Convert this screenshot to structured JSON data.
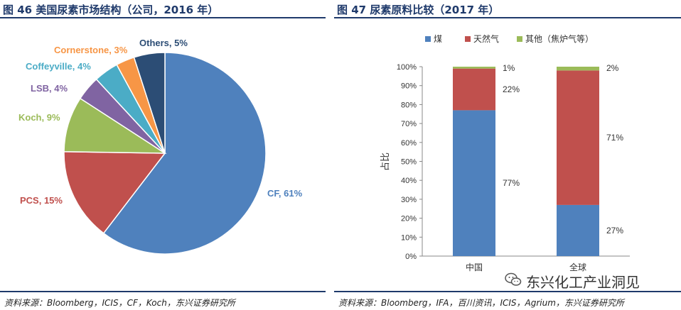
{
  "left": {
    "title": "图 46 美国尿素市场结构（公司，2016 年）",
    "source": "资料来源：Bloomberg，ICIS，CF，Koch，东兴证券研究所"
  },
  "right": {
    "title": "图 47 尿素原料比较（2017 年）",
    "source": "资料来源：Bloomberg，IFA，百川资讯，ICIS，Agrium，东兴证券研究所"
  },
  "watermark": "东兴化工产业洞见",
  "chart_data": [
    {
      "type": "pie",
      "title": "图 46 美国尿素市场结构（公司，2016 年）",
      "slices": [
        {
          "name": "CF",
          "value": 61,
          "label": "CF, 61%",
          "color": "#4f81bd"
        },
        {
          "name": "PCS",
          "value": 15,
          "label": "PCS, 15%",
          "color": "#c0504d"
        },
        {
          "name": "Koch",
          "value": 9,
          "label": "Koch, 9%",
          "color": "#9bbb59"
        },
        {
          "name": "LSB",
          "value": 4,
          "label": "LSB, 4%",
          "color": "#8064a2"
        },
        {
          "name": "Coffeyville",
          "value": 4,
          "label": "Coffeyville, 4%",
          "color": "#4bacc6"
        },
        {
          "name": "Cornerstone",
          "value": 3,
          "label": "Cornerstone, 3%",
          "color": "#f79646"
        },
        {
          "name": "Others",
          "value": 5,
          "label": "Others, 5%",
          "color": "#2c4d75"
        }
      ]
    },
    {
      "type": "bar",
      "stacked": true,
      "title": "图 47 尿素原料比较（2017 年）",
      "categories": [
        "中国",
        "全球"
      ],
      "ylabel": "占比",
      "ylim": [
        0,
        100
      ],
      "yticks": [
        "0%",
        "10%",
        "20%",
        "30%",
        "40%",
        "50%",
        "60%",
        "70%",
        "80%",
        "90%",
        "100%"
      ],
      "legend_position": "top",
      "series": [
        {
          "name": "煤",
          "values": [
            77,
            27
          ],
          "labels": [
            "77%",
            "27%"
          ],
          "color": "#4f81bd"
        },
        {
          "name": "天然气",
          "values": [
            22,
            71
          ],
          "labels": [
            "22%",
            "71%"
          ],
          "color": "#c0504d"
        },
        {
          "name": "其他（焦炉气等）",
          "values": [
            1,
            2
          ],
          "labels": [
            "1%",
            "2%"
          ],
          "color": "#9bbb59"
        }
      ]
    }
  ]
}
